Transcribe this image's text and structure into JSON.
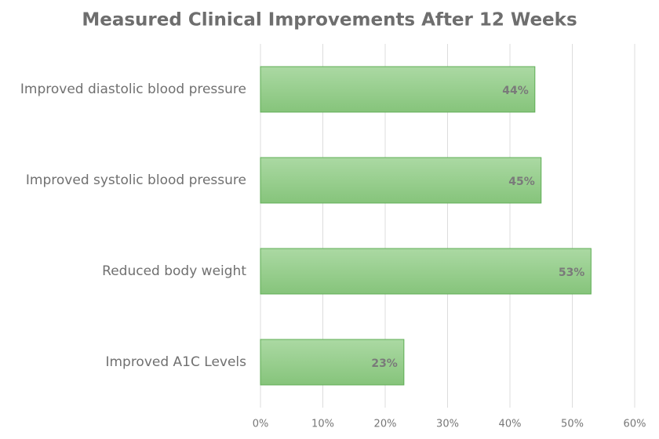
{
  "chart_data": {
    "type": "bar",
    "orientation": "horizontal",
    "title": "Measured Clinical Improvements After 12 Weeks",
    "categories": [
      "Improved diastolic blood pressure",
      "Improved systolic blood pressure",
      "Reduced body weight",
      "Improved A1C Levels"
    ],
    "values": [
      44,
      45,
      53,
      23
    ],
    "value_labels": [
      "44%",
      "45%",
      "53%",
      "23%"
    ],
    "color": "#93cc88",
    "xlim": [
      0,
      60
    ],
    "xticks": [
      {
        "value": 0,
        "label": "0%"
      },
      {
        "value": 10,
        "label": "10%"
      },
      {
        "value": 20,
        "label": "20%"
      },
      {
        "value": 30,
        "label": "30%"
      },
      {
        "value": 40,
        "label": "40%"
      },
      {
        "value": 50,
        "label": "50%"
      },
      {
        "value": 60,
        "label": "60%"
      }
    ],
    "grid": true
  }
}
